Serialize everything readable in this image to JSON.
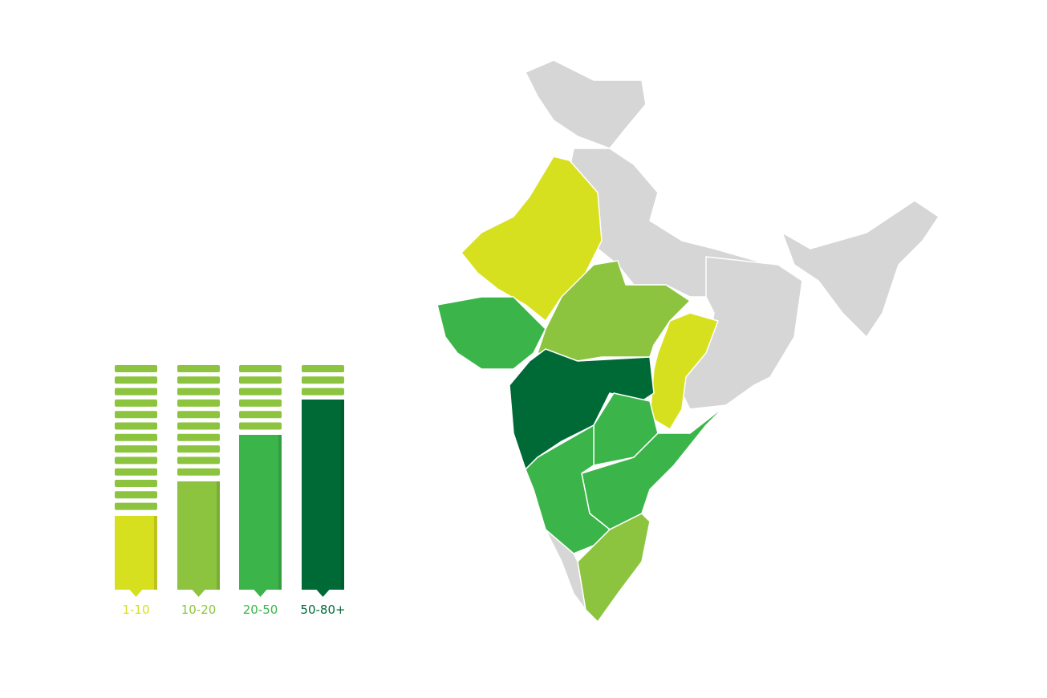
{
  "legend": {
    "items": [
      {
        "label": "1-10",
        "color": "#d7e01f"
      },
      {
        "label": "10-20",
        "color": "#8cc43f"
      },
      {
        "label": "20-50",
        "color": "#3bb54a"
      },
      {
        "label": "50-80+",
        "color": "#006a37"
      }
    ]
  }
}
